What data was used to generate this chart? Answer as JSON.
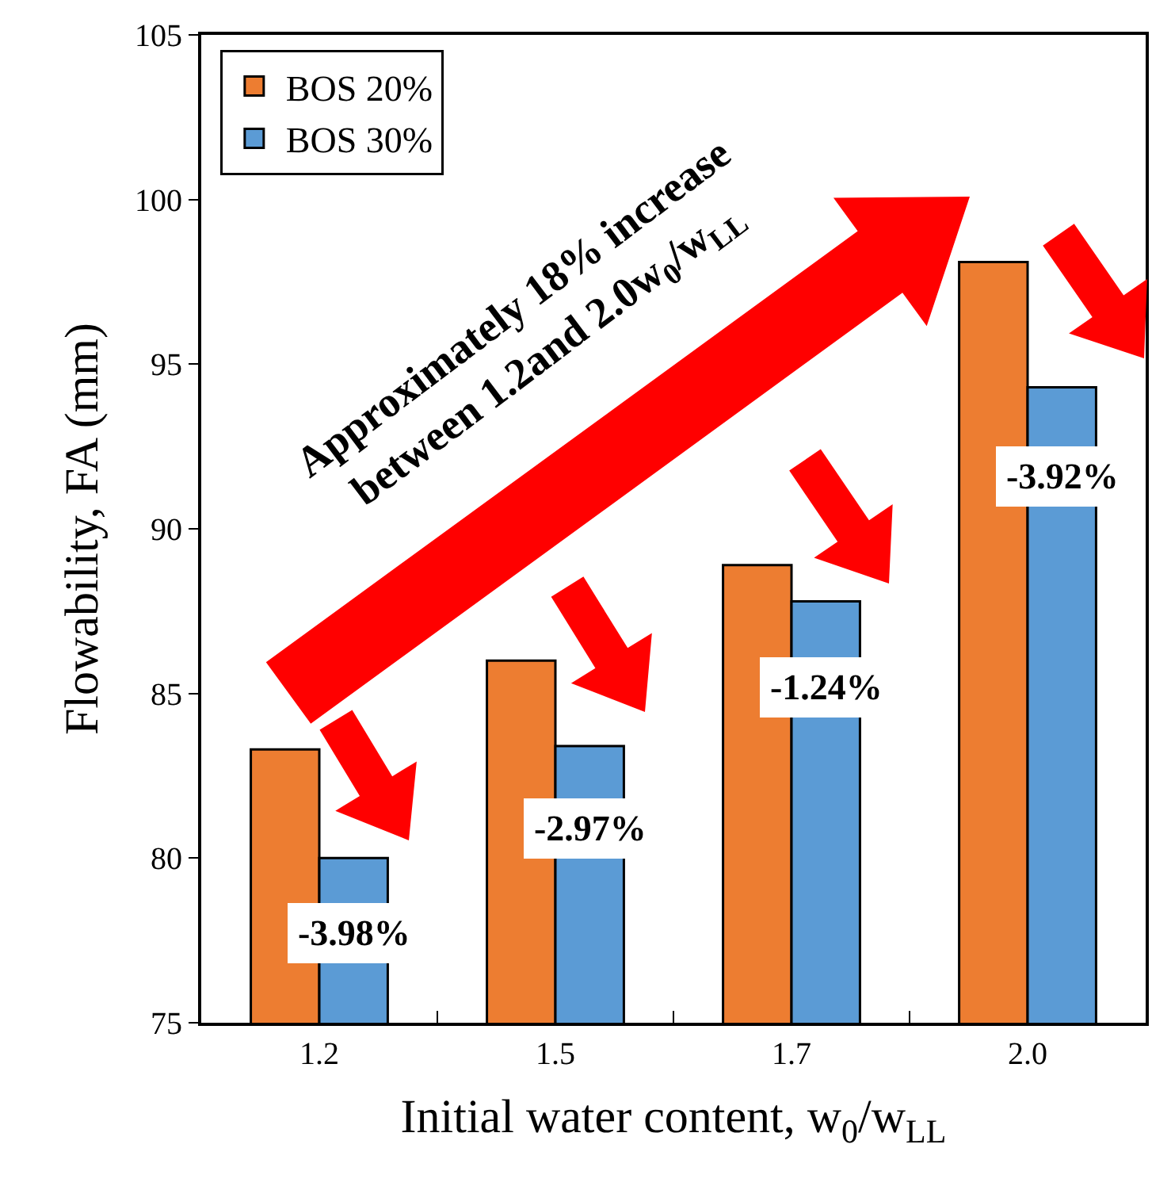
{
  "chart_data": {
    "type": "bar",
    "xlabel": "Initial water content, w$_{0}$/w$_{LL}$",
    "ylabel": "Flowability, FA (mm)",
    "categories": [
      "1.2",
      "1.5",
      "1.7",
      "2.0"
    ],
    "series": [
      {
        "name": "BOS 20%",
        "color": "#ed7d31",
        "values": [
          83.3,
          86.0,
          88.9,
          98.1
        ]
      },
      {
        "name": "BOS 30%",
        "color": "#5b9bd5",
        "values": [
          80.0,
          83.4,
          87.8,
          94.3
        ]
      }
    ],
    "ylim": [
      75,
      105
    ],
    "yticks": [
      75,
      80,
      85,
      90,
      95,
      100,
      105
    ],
    "grid": false,
    "legend": "top left",
    "annotations": [
      {
        "text": "-3.98%",
        "x": "1.2",
        "y": 77.7
      },
      {
        "text": "-2.97%",
        "x": "1.5",
        "y": 80.9
      },
      {
        "text": "-1.24%",
        "x": "1.7",
        "y": 85.2
      },
      {
        "text": "-3.92%",
        "x": "2.0",
        "y": 91.6
      },
      "Approximately 18% increase\nbetween 1.2and 2.0w$_{0}$/w$_{LL}$"
    ]
  }
}
